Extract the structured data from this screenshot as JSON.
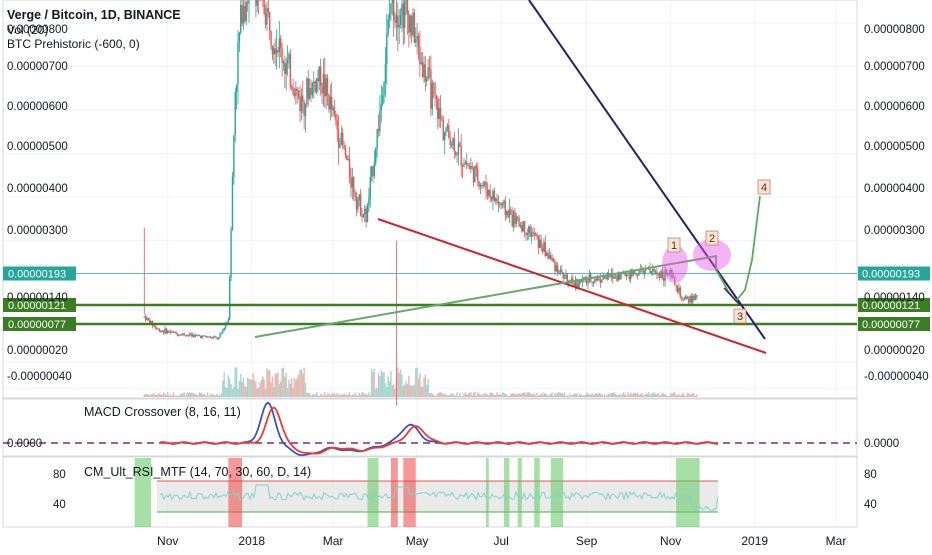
{
  "legend": {
    "title": "Verge / Bitcoin, 1D, BINANCE",
    "vol": "Vol (20)",
    "prehistoric": "BTC Prehistoric (-600, 0)"
  },
  "colors": {
    "up": "#26a69a",
    "down": "#ef5350",
    "vol_up": "#a5d6d0",
    "vol_down": "#f2b1ab",
    "support": "#3b7d23",
    "red_trend": "#d32029",
    "navy_trend": "#2a1f6d",
    "green_trend": "#6aa86a",
    "projection": "#5daa5d",
    "current": "#26a69a",
    "macd": "#3f52c4",
    "signal": "#ef3b2c",
    "zero": "#7b2d7b",
    "rsi_band": "#dcdcdc",
    "rsi_upper": "#ef5350",
    "rsi_lower": "#4caf50",
    "rsi_line": "#7fd6c6",
    "shade_green": "#5cc65c",
    "shade_red": "#ef4444",
    "ellipse": "#e657e6"
  },
  "x_axis": {
    "labels": [
      "Nov",
      "2018",
      "Mar",
      "May",
      "Jul",
      "Sep",
      "Nov",
      "2019",
      "Mar"
    ]
  },
  "price_axis": {
    "ticks": [
      "0.00000800",
      "0.00000700",
      "0.00000600",
      "0.00000500",
      "0.00000400",
      "0.00000300",
      "0.00000140",
      "0.00000020",
      "-0.00000040"
    ],
    "current_price": "0.00000193",
    "support_1": "0.00000121",
    "support_2": "0.00000077"
  },
  "macd": {
    "label": "MACD Crossover (8, 16, 11)",
    "zero_label": "0.0000"
  },
  "rsi": {
    "label": "CM_Ult_RSI_MTF (14, 70, 30, 60, D, 14)",
    "ticks": [
      "80",
      "40"
    ],
    "upper_level": 70,
    "lower_level": 30
  },
  "annotations": [
    "1",
    "2",
    "3",
    "4"
  ],
  "chart_data": {
    "type": "candlestick",
    "title": "Verge / Bitcoin, 1D, BINANCE",
    "x_range": [
      "2017-10",
      "2019-03"
    ],
    "y_unit": "BTC",
    "ylim": [
      -6e-07,
      8.5e-07
    ],
    "horizontal_levels": [
      1.93e-06,
      1.21e-06,
      7.7e-07
    ],
    "price_path": [
      {
        "date": "2017-10-15",
        "price": 1.25e-06
      },
      {
        "date": "2017-10-25",
        "price": 9.5e-07
      },
      {
        "date": "2017-11-10",
        "price": 8.5e-07
      },
      {
        "date": "2017-11-25",
        "price": 8e-07
      },
      {
        "date": "2017-12-08",
        "price": 7.5e-07
      },
      {
        "date": "2017-12-15",
        "price": 1.2e-06
      },
      {
        "date": "2017-12-20",
        "price": 6.5e-06
      },
      {
        "date": "2017-12-25",
        "price": 8.5e-06
      },
      {
        "date": "2018-01-05",
        "price": 8.8e-06
      },
      {
        "date": "2018-01-20",
        "price": 7.5e-06
      },
      {
        "date": "2018-02-05",
        "price": 6.2e-06
      },
      {
        "date": "2018-02-20",
        "price": 6.8e-06
      },
      {
        "date": "2018-03-05",
        "price": 5.5e-06
      },
      {
        "date": "2018-03-18",
        "price": 4e-06
      },
      {
        "date": "2018-03-25",
        "price": 3.5e-06
      },
      {
        "date": "2018-04-05",
        "price": 6.2e-06
      },
      {
        "date": "2018-04-12",
        "price": 8.5e-06
      },
      {
        "date": "2018-04-25",
        "price": 8.2e-06
      },
      {
        "date": "2018-05-05",
        "price": 7e-06
      },
      {
        "date": "2018-05-20",
        "price": 5.6e-06
      },
      {
        "date": "2018-06-05",
        "price": 4.8e-06
      },
      {
        "date": "2018-06-25",
        "price": 4e-06
      },
      {
        "date": "2018-07-10",
        "price": 3.5e-06
      },
      {
        "date": "2018-07-25",
        "price": 3.1e-06
      },
      {
        "date": "2018-08-10",
        "price": 2.4e-06
      },
      {
        "date": "2018-08-20",
        "price": 2e-06
      },
      {
        "date": "2018-09-05",
        "price": 2.1e-06
      },
      {
        "date": "2018-09-25",
        "price": 2.2e-06
      },
      {
        "date": "2018-10-15",
        "price": 2.3e-06
      },
      {
        "date": "2018-11-01",
        "price": 2.2e-06
      },
      {
        "date": "2018-11-10",
        "price": 1.6e-06
      },
      {
        "date": "2018-11-20",
        "price": 1.7e-06
      }
    ],
    "trendlines": [
      {
        "name": "red",
        "from": {
          "date": "2018-03-20",
          "price": 3.2e-06
        },
        "to": {
          "date": "2019-01-05",
          "price": 0.0
        }
      },
      {
        "name": "navy",
        "from": {
          "date": "2018-05-15",
          "price": 8.8e-06
        },
        "to": {
          "date": "2019-01-05",
          "price": 3e-07
        }
      },
      {
        "name": "green",
        "from": {
          "date": "2017-12-10",
          "price": 6e-07
        },
        "to": {
          "date": "2018-11-15",
          "price": 2.2e-06
        }
      }
    ],
    "projection": [
      {
        "date": "2018-11-10",
        "price": 2.1e-06
      },
      {
        "date": "2018-11-25",
        "price": 1.3e-06
      },
      {
        "date": "2018-12-10",
        "price": 1.2e-06
      },
      {
        "date": "2019-01-01",
        "price": 4e-06
      }
    ],
    "rsi_shaded_periods": [
      {
        "color": "green",
        "from": "2017-10-08",
        "to": "2017-10-20"
      },
      {
        "color": "red",
        "from": "2017-12-15",
        "to": "2017-12-25"
      },
      {
        "color": "green",
        "from": "2018-03-26",
        "to": "2018-04-03"
      },
      {
        "color": "red",
        "from": "2018-04-12",
        "to": "2018-04-17"
      },
      {
        "color": "red",
        "from": "2018-04-21",
        "to": "2018-04-30"
      },
      {
        "color": "green",
        "from": "2018-06-20",
        "to": "2018-06-22"
      },
      {
        "color": "green",
        "from": "2018-07-03",
        "to": "2018-07-07"
      },
      {
        "color": "green",
        "from": "2018-07-13",
        "to": "2018-07-16"
      },
      {
        "color": "green",
        "from": "2018-07-25",
        "to": "2018-07-29"
      },
      {
        "color": "green",
        "from": "2018-08-06",
        "to": "2018-08-15"
      },
      {
        "color": "green",
        "from": "2018-11-05",
        "to": "2018-11-22"
      }
    ]
  }
}
